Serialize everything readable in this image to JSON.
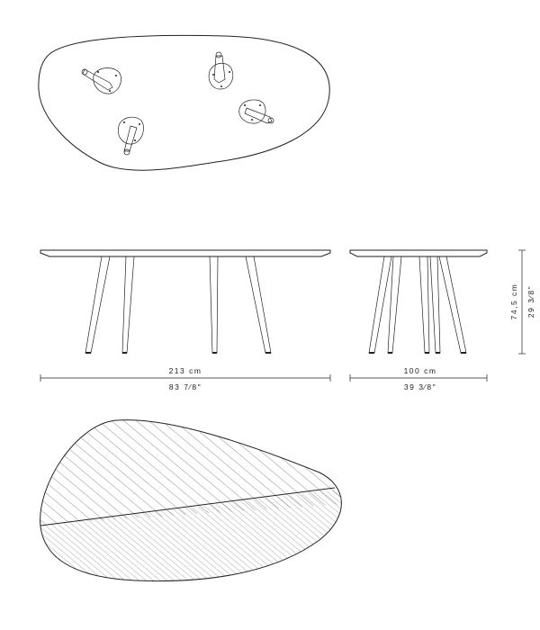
{
  "dimensions": {
    "length_cm": "213 cm",
    "length_in": "83 7⁄8\"",
    "width_cm": "100 cm",
    "width_in": "39 3⁄8\"",
    "height_cm": "74,5 cm",
    "height_in": "29 3⁄8\""
  },
  "views": [
    "top-view-underside",
    "front-elevation",
    "side-elevation",
    "top-view-surface"
  ]
}
